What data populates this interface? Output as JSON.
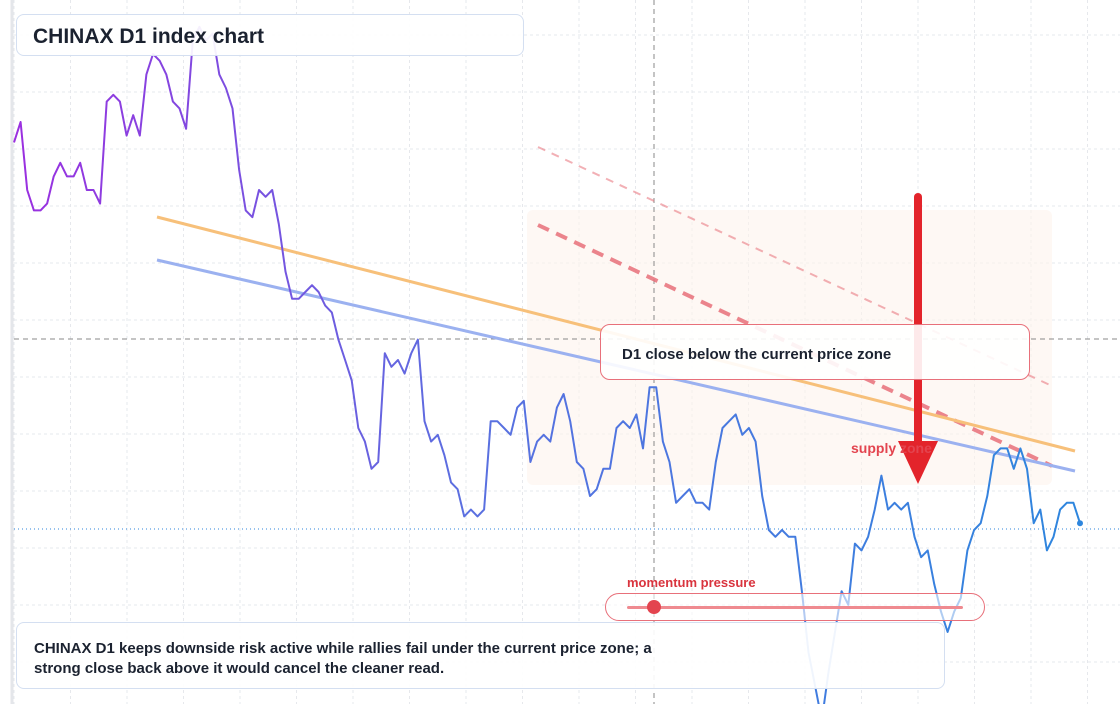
{
  "title": "CHINAX D1 index chart",
  "callout": "D1 close below the current price zone",
  "supply_label": "supply zone",
  "momentum": {
    "label": "momentum pressure",
    "level": 0.08
  },
  "summary": "CHINAX D1 keeps downside risk active while rallies fail under the current price zone; a strong close back above it would cancel the cleaner read.",
  "colors": {
    "price_start": "#9b2fe0",
    "price_mid": "#5b6fe0",
    "price_end": "#2e86de",
    "ma_fast": "#f7c07a",
    "ma_slow": "#9bb1f0",
    "resistance": "#e8707a",
    "arrow": "#e3242b",
    "zone": "#fdf3ec"
  },
  "chart_data": {
    "type": "line",
    "title": "CHINAX D1 index chart",
    "xlabel": "",
    "ylabel": "",
    "ylim": [
      0,
      100
    ],
    "grid": true,
    "annotations": [
      "D1 close below the current price zone",
      "supply zone",
      "momentum pressure"
    ],
    "series": [
      {
        "values": [
          82,
          85,
          75,
          72,
          72,
          73,
          77,
          79,
          77,
          77,
          79,
          75,
          75,
          73,
          88,
          89,
          88,
          83,
          86,
          83,
          92,
          95,
          94,
          92,
          88,
          87,
          84,
          97,
          99,
          97,
          98,
          92,
          90,
          87,
          78,
          72,
          71,
          75,
          74,
          75,
          70,
          63,
          59,
          59,
          60,
          61,
          60,
          58,
          57,
          53,
          50,
          47,
          40,
          38,
          34,
          35,
          51,
          49,
          50,
          48,
          51,
          53,
          41,
          38,
          39,
          36,
          32,
          31,
          27,
          28,
          27,
          28,
          41,
          41,
          40,
          39,
          43,
          44,
          35,
          38,
          39,
          38,
          43,
          45,
          41,
          35,
          34,
          30,
          31,
          34,
          34,
          40,
          41,
          40,
          42,
          37,
          46,
          46,
          38,
          35,
          29,
          30,
          31,
          29,
          29,
          28,
          35,
          40,
          41,
          42,
          39,
          40,
          38,
          30,
          25,
          24,
          25,
          24,
          24,
          16,
          7,
          2,
          -3,
          4,
          10,
          16,
          14,
          23,
          22,
          24,
          28,
          33,
          28,
          29,
          28,
          29,
          24,
          21,
          22,
          17,
          13,
          10,
          13,
          15,
          22,
          25,
          26,
          30,
          36,
          37,
          37,
          34,
          37,
          34,
          26,
          28,
          22,
          24,
          28,
          29,
          29,
          26
        ]
      },
      {
        "values": [
          68,
          29
        ]
      },
      {
        "values": [
          63,
          25
        ]
      }
    ]
  }
}
